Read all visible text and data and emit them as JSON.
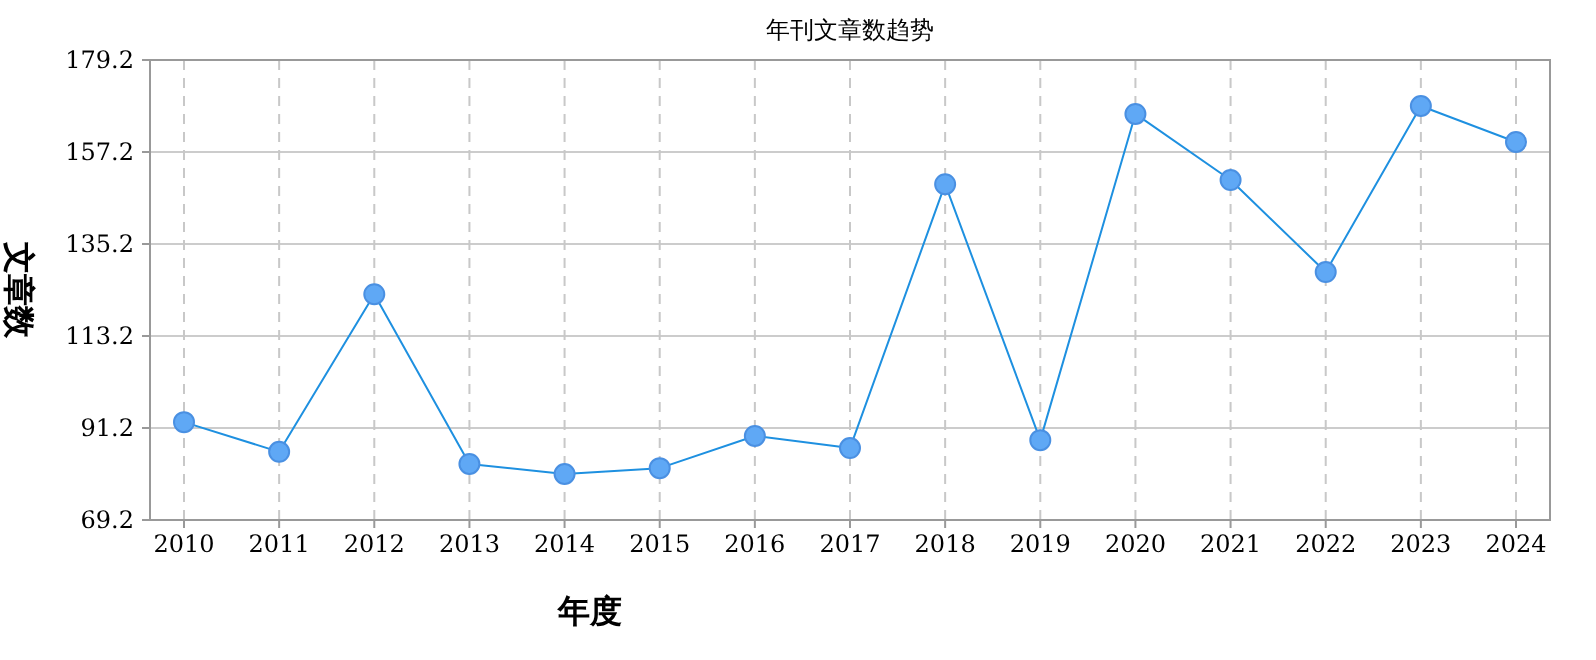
{
  "chart_data": {
    "type": "line",
    "title": "年刊文章数趋势",
    "xlabel": "年度",
    "ylabel": "文章数",
    "categories": [
      "2010",
      "2011",
      "2012",
      "2013",
      "2014",
      "2015",
      "2016",
      "2017",
      "2018",
      "2019",
      "2020",
      "2021",
      "2022",
      "2023",
      "2024"
    ],
    "series": [
      {
        "color": "#1e90e0",
        "values": [
          92.6,
          85.5,
          123.2,
          82.6,
          80.2,
          81.6,
          89.3,
          86.4,
          149.5,
          88.3,
          166.3,
          150.5,
          128.5,
          168.2,
          159.6
        ]
      }
    ],
    "ylim": [
      69.2,
      179.2
    ],
    "yticks": [
      69.2,
      91.2,
      113.2,
      135.2,
      157.2,
      179.2
    ],
    "grid": true,
    "marker": "circle",
    "line_style": "solid"
  }
}
